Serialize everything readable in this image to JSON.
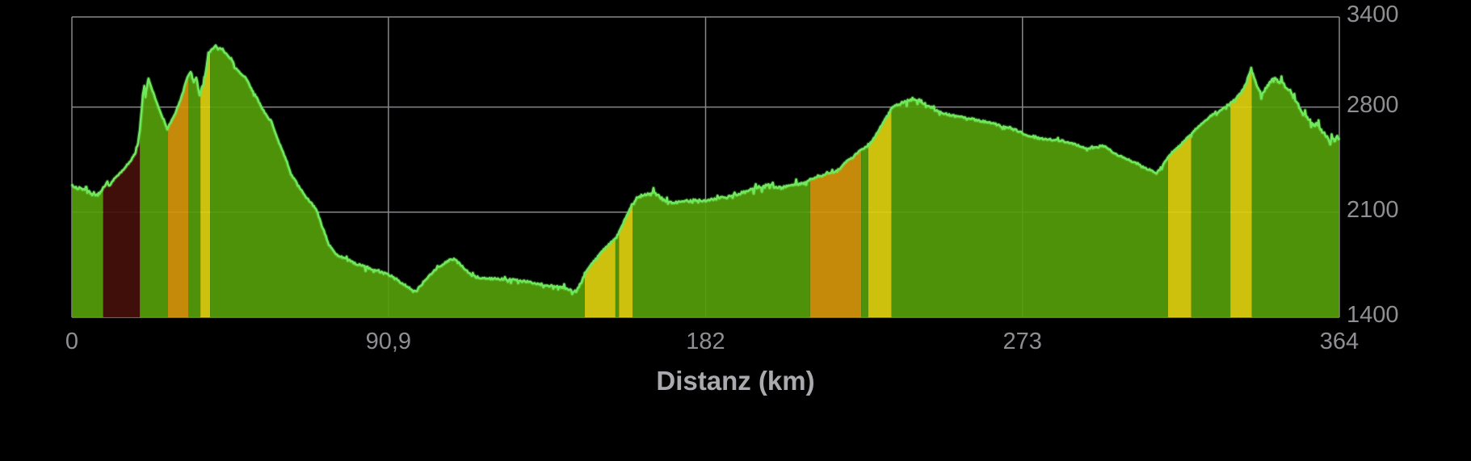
{
  "xaxis": {
    "title": "Distanz (km)",
    "ticks": [
      {
        "label": "0",
        "value": 0
      },
      {
        "label": "90,9",
        "value": 90.9
      },
      {
        "label": "182",
        "value": 182
      },
      {
        "label": "273",
        "value": 273
      },
      {
        "label": "364",
        "value": 364
      }
    ]
  },
  "yaxis": {
    "ticks": [
      {
        "label": "3400",
        "value": 3400
      },
      {
        "label": "2800",
        "value": 2800
      },
      {
        "label": "2100",
        "value": 2100
      },
      {
        "label": "1400",
        "value": 1400
      }
    ]
  },
  "colors": {
    "background": "#000000",
    "grid": "#87878c",
    "tick_label": "#8e8e93",
    "axis_title": "#a9a9ae",
    "profile_stroke": "#6fe85c",
    "fill_default": "#549d0b",
    "band_dark_red": "#46100a",
    "band_orange": "#d4940b",
    "band_yellow": "#ddd00e"
  },
  "chart_data": {
    "type": "area",
    "title": "",
    "xlabel": "Distanz (km)",
    "ylabel": "",
    "xlim": [
      0,
      364
    ],
    "ylim": [
      1400,
      3400
    ],
    "x_gridlines": [
      0,
      90.9,
      182,
      273,
      364
    ],
    "y_gridlines": [
      3400,
      2800,
      2100,
      1400
    ],
    "gradient_bands": [
      {
        "from_km": 9.0,
        "to_km": 19.5,
        "color_name": "dark-red"
      },
      {
        "from_km": 27.6,
        "to_km": 33.4,
        "color_name": "orange"
      },
      {
        "from_km": 36.9,
        "to_km": 39.7,
        "color_name": "yellow"
      },
      {
        "from_km": 147.3,
        "to_km": 156.1,
        "color_name": "yellow"
      },
      {
        "from_km": 157.1,
        "to_km": 161.0,
        "color_name": "yellow"
      },
      {
        "from_km": 212.0,
        "to_km": 226.7,
        "color_name": "orange"
      },
      {
        "from_km": 228.7,
        "to_km": 235.4,
        "color_name": "yellow"
      },
      {
        "from_km": 314.8,
        "to_km": 321.5,
        "color_name": "yellow"
      },
      {
        "from_km": 332.7,
        "to_km": 338.9,
        "color_name": "yellow"
      }
    ],
    "points": [
      [
        0,
        2282
      ],
      [
        0.7,
        2270
      ],
      [
        1.4,
        2258
      ],
      [
        2.1,
        2262
      ],
      [
        2.8,
        2250
      ],
      [
        3.5,
        2252
      ],
      [
        4.2,
        2242
      ],
      [
        4.9,
        2240
      ],
      [
        5.6,
        2222
      ],
      [
        6.3,
        2228
      ],
      [
        7,
        2208
      ],
      [
        7.9,
        2226
      ],
      [
        9,
        2262
      ],
      [
        10.2,
        2290
      ],
      [
        10.9,
        2275
      ],
      [
        11.8,
        2315
      ],
      [
        13,
        2338
      ],
      [
        14.2,
        2370
      ],
      [
        15.3,
        2398
      ],
      [
        16.5,
        2432
      ],
      [
        17.4,
        2462
      ],
      [
        18.3,
        2495
      ],
      [
        19,
        2560
      ],
      [
        19.5,
        2650
      ],
      [
        20,
        2780
      ],
      [
        20.4,
        2880
      ],
      [
        20.8,
        2940
      ],
      [
        21.1,
        2870
      ],
      [
        21.6,
        2940
      ],
      [
        22,
        2990
      ],
      [
        22.5,
        2950
      ],
      [
        23.4,
        2895
      ],
      [
        24.6,
        2815
      ],
      [
        25.8,
        2740
      ],
      [
        26.7,
        2695
      ],
      [
        27.4,
        2658
      ],
      [
        28.5,
        2700
      ],
      [
        29.7,
        2760
      ],
      [
        30.9,
        2830
      ],
      [
        32,
        2905
      ],
      [
        32.9,
        2980
      ],
      [
        33.4,
        3010
      ],
      [
        34.1,
        3034
      ],
      [
        34.6,
        2990
      ],
      [
        35,
        2970
      ],
      [
        35.7,
        2997
      ],
      [
        36.2,
        2940
      ],
      [
        36.7,
        2878
      ],
      [
        37.4,
        2935
      ],
      [
        37.8,
        2954
      ],
      [
        38.5,
        3040
      ],
      [
        39.2,
        3158
      ],
      [
        39.7,
        3170
      ],
      [
        40.4,
        3190
      ],
      [
        41.3,
        3208
      ],
      [
        42,
        3185
      ],
      [
        42.7,
        3192
      ],
      [
        43.6,
        3170
      ],
      [
        44.5,
        3150
      ],
      [
        45.5,
        3118
      ],
      [
        46.2,
        3105
      ],
      [
        46.9,
        3060
      ],
      [
        47.8,
        3042
      ],
      [
        48.9,
        3014
      ],
      [
        49.9,
        2996
      ],
      [
        50.8,
        2955
      ],
      [
        51.7,
        2916
      ],
      [
        53.1,
        2862
      ],
      [
        54.5,
        2800
      ],
      [
        55.9,
        2742
      ],
      [
        57.3,
        2704
      ],
      [
        58.7,
        2612
      ],
      [
        60.1,
        2526
      ],
      [
        61.5,
        2452
      ],
      [
        62.9,
        2352
      ],
      [
        64.3,
        2310
      ],
      [
        65.7,
        2252
      ],
      [
        67,
        2206
      ],
      [
        68.7,
        2162
      ],
      [
        70.3,
        2112
      ],
      [
        72.1,
        1990
      ],
      [
        73.8,
        1882
      ],
      [
        75.6,
        1826
      ],
      [
        77.7,
        1796
      ],
      [
        79.8,
        1776
      ],
      [
        82.6,
        1748
      ],
      [
        86.1,
        1724
      ],
      [
        88.4,
        1706
      ],
      [
        91.2,
        1680
      ],
      [
        93,
        1656
      ],
      [
        95.4,
        1618
      ],
      [
        97.2,
        1590
      ],
      [
        98.8,
        1572
      ],
      [
        101.2,
        1640
      ],
      [
        103.5,
        1700
      ],
      [
        105.3,
        1734
      ],
      [
        107,
        1760
      ],
      [
        108.6,
        1782
      ],
      [
        110,
        1788
      ],
      [
        111.6,
        1750
      ],
      [
        113.2,
        1717
      ],
      [
        114.6,
        1682
      ],
      [
        116.2,
        1668
      ],
      [
        117.9,
        1663
      ],
      [
        120.9,
        1656
      ],
      [
        125.5,
        1652
      ],
      [
        130.2,
        1638
      ],
      [
        133.2,
        1626
      ],
      [
        137.1,
        1610
      ],
      [
        141.1,
        1599
      ],
      [
        143.4,
        1582
      ],
      [
        144.8,
        1570
      ],
      [
        146.4,
        1640
      ],
      [
        147.3,
        1696
      ],
      [
        149.9,
        1772
      ],
      [
        152.2,
        1840
      ],
      [
        154.5,
        1890
      ],
      [
        156.4,
        1932
      ],
      [
        158,
        2010
      ],
      [
        159.4,
        2080
      ],
      [
        160.8,
        2148
      ],
      [
        162.2,
        2190
      ],
      [
        163.8,
        2215
      ],
      [
        165.4,
        2222
      ],
      [
        167.3,
        2228
      ],
      [
        169.1,
        2196
      ],
      [
        171.2,
        2164
      ],
      [
        173.8,
        2168
      ],
      [
        176.6,
        2174
      ],
      [
        179.3,
        2178
      ],
      [
        182.3,
        2180
      ],
      [
        185.4,
        2190
      ],
      [
        188.1,
        2200
      ],
      [
        190.9,
        2220
      ],
      [
        193.9,
        2240
      ],
      [
        195.8,
        2255
      ],
      [
        197.9,
        2270
      ],
      [
        199.8,
        2282
      ],
      [
        201.6,
        2270
      ],
      [
        203.7,
        2262
      ],
      [
        205.5,
        2270
      ],
      [
        207.4,
        2282
      ],
      [
        209.5,
        2295
      ],
      [
        211.4,
        2310
      ],
      [
        213.7,
        2330
      ],
      [
        216,
        2350
      ],
      [
        219,
        2368
      ],
      [
        220.6,
        2390
      ],
      [
        222.2,
        2432
      ],
      [
        224.1,
        2462
      ],
      [
        225.2,
        2486
      ],
      [
        226.6,
        2514
      ],
      [
        228.7,
        2540
      ],
      [
        230.6,
        2600
      ],
      [
        232.2,
        2665
      ],
      [
        233.8,
        2730
      ],
      [
        235.5,
        2794
      ],
      [
        236.9,
        2810
      ],
      [
        238.7,
        2830
      ],
      [
        240.3,
        2845
      ],
      [
        241.7,
        2850
      ],
      [
        243.1,
        2852
      ],
      [
        245,
        2820
      ],
      [
        247.3,
        2790
      ],
      [
        249.2,
        2766
      ],
      [
        251.9,
        2748
      ],
      [
        254.2,
        2738
      ],
      [
        257,
        2728
      ],
      [
        260,
        2712
      ],
      [
        262.8,
        2700
      ],
      [
        264.7,
        2690
      ],
      [
        267,
        2672
      ],
      [
        269.3,
        2662
      ],
      [
        271.2,
        2645
      ],
      [
        272.6,
        2630
      ],
      [
        274.4,
        2612
      ],
      [
        277,
        2594
      ],
      [
        279.8,
        2585
      ],
      [
        282.1,
        2580
      ],
      [
        284,
        2578
      ],
      [
        286.7,
        2560
      ],
      [
        289,
        2545
      ],
      [
        291.8,
        2524
      ],
      [
        294.4,
        2532
      ],
      [
        296,
        2545
      ],
      [
        297.2,
        2530
      ],
      [
        299.5,
        2490
      ],
      [
        301.8,
        2465
      ],
      [
        304.1,
        2443
      ],
      [
        306.4,
        2415
      ],
      [
        308.7,
        2390
      ],
      [
        310.6,
        2370
      ],
      [
        311.5,
        2362
      ],
      [
        313.9,
        2432
      ],
      [
        316,
        2500
      ],
      [
        318.1,
        2540
      ],
      [
        320.9,
        2610
      ],
      [
        322.7,
        2653
      ],
      [
        325,
        2700
      ],
      [
        327.3,
        2745
      ],
      [
        329.6,
        2770
      ],
      [
        331.2,
        2800
      ],
      [
        332.7,
        2830
      ],
      [
        333.4,
        2840
      ],
      [
        334.8,
        2870
      ],
      [
        335.9,
        2900
      ],
      [
        337.1,
        2950
      ],
      [
        338,
        3010
      ],
      [
        338.7,
        3060
      ],
      [
        339.6,
        2990
      ],
      [
        340.4,
        2937
      ],
      [
        341.9,
        2894
      ],
      [
        343.4,
        2940
      ],
      [
        344.6,
        2975
      ],
      [
        345.9,
        2991
      ],
      [
        346.8,
        2959
      ],
      [
        347.4,
        2975
      ],
      [
        348.4,
        2935
      ],
      [
        349.9,
        2910
      ],
      [
        350.8,
        2860
      ],
      [
        352.2,
        2814
      ],
      [
        353.6,
        2750
      ],
      [
        355.9,
        2707
      ],
      [
        356.8,
        2670
      ],
      [
        357.5,
        2697
      ],
      [
        359.1,
        2636
      ],
      [
        360.5,
        2599
      ],
      [
        361.4,
        2545
      ],
      [
        361.8,
        2615
      ],
      [
        362.4,
        2570
      ],
      [
        362.8,
        2583
      ],
      [
        363.4,
        2600
      ],
      [
        364,
        2580
      ]
    ]
  }
}
